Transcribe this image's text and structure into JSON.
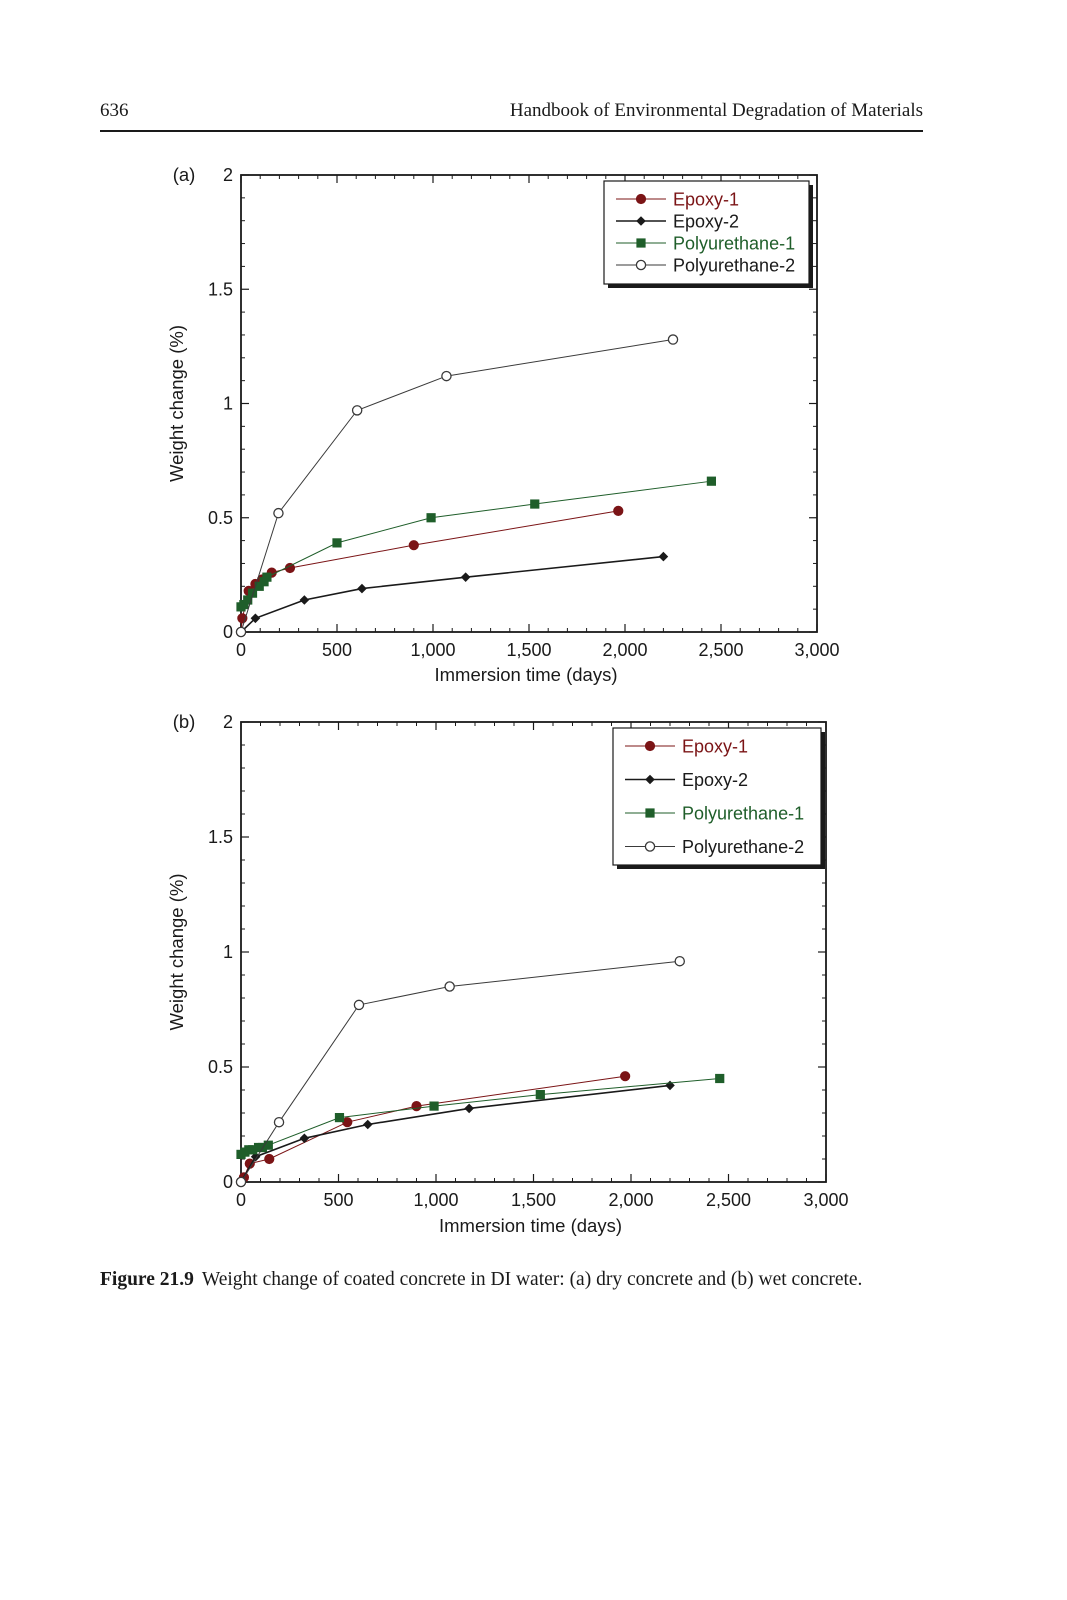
{
  "page": {
    "number": "636",
    "running_head": "Handbook of Environmental Degradation of Materials"
  },
  "caption": {
    "label": "Figure 21.9",
    "text": "Weight change of coated concrete in DI water: (a) dry concrete and (b) wet concrete."
  },
  "chart_data": [
    {
      "type": "line",
      "panel_label": "(a)",
      "xlabel": "Immersion time (days)",
      "ylabel": "Weight change (%)",
      "xlim": [
        0,
        3000
      ],
      "ylim": [
        0,
        2
      ],
      "xticks": [
        0,
        500,
        1000,
        1500,
        2000,
        2500,
        3000
      ],
      "xtick_labels": [
        "0",
        "500",
        "1,000",
        "1,500",
        "2,000",
        "2,500",
        "3,000"
      ],
      "yticks": [
        0,
        0.5,
        1,
        1.5,
        2
      ],
      "ytick_labels": [
        "0",
        "0.5",
        "1",
        "1.5",
        "2"
      ],
      "grid": false,
      "legend_position": "top-right",
      "series": [
        {
          "name": "Epoxy-1",
          "color": "#7b1416",
          "marker": "filled-circle",
          "x": [
            0,
            7,
            40,
            75,
            110,
            160,
            255,
            900,
            1965
          ],
          "y": [
            0,
            0.06,
            0.18,
            0.21,
            0.23,
            0.26,
            0.28,
            0.38,
            0.53
          ]
        },
        {
          "name": "Epoxy-2",
          "color": "#1a1a1a",
          "marker": "filled-diamond",
          "x": [
            0,
            75,
            330,
            630,
            1170,
            2200
          ],
          "y": [
            0,
            0.06,
            0.14,
            0.19,
            0.24,
            0.33
          ]
        },
        {
          "name": "Polyurethane-1",
          "color": "#1f5e2a",
          "marker": "filled-square",
          "x": [
            0,
            15,
            35,
            60,
            95,
            120,
            135,
            500,
            990,
            1530,
            2450
          ],
          "y": [
            0.11,
            0.12,
            0.14,
            0.17,
            0.2,
            0.22,
            0.24,
            0.39,
            0.5,
            0.56,
            0.66
          ]
        },
        {
          "name": "Polyurethane-2",
          "color": "#3a3a3a",
          "marker": "open-circle",
          "x": [
            0,
            195,
            605,
            1070,
            2250
          ],
          "y": [
            0,
            0.52,
            0.97,
            1.12,
            1.28
          ]
        }
      ]
    },
    {
      "type": "line",
      "panel_label": "(b)",
      "xlabel": "Immersion time (days)",
      "ylabel": "Weight change (%)",
      "xlim": [
        0,
        3000
      ],
      "ylim": [
        0,
        2
      ],
      "xticks": [
        0,
        500,
        1000,
        1500,
        2000,
        2500,
        3000
      ],
      "xtick_labels": [
        "0",
        "500",
        "1,000",
        "1,500",
        "2,000",
        "2,500",
        "3,000"
      ],
      "yticks": [
        0,
        0.5,
        1,
        1.5,
        2
      ],
      "ytick_labels": [
        "0",
        "0.5",
        "1",
        "1.5",
        "2"
      ],
      "grid": false,
      "legend_position": "top-right",
      "series": [
        {
          "name": "Epoxy-1",
          "color": "#7b1416",
          "marker": "filled-circle",
          "x": [
            0,
            15,
            45,
            145,
            545,
            900,
            1970
          ],
          "y": [
            0,
            0.02,
            0.08,
            0.1,
            0.26,
            0.33,
            0.46
          ]
        },
        {
          "name": "Epoxy-2",
          "color": "#1a1a1a",
          "marker": "filled-diamond",
          "x": [
            0,
            75,
            325,
            650,
            1170,
            2200
          ],
          "y": [
            0,
            0.11,
            0.19,
            0.25,
            0.32,
            0.42
          ]
        },
        {
          "name": "Polyurethane-1",
          "color": "#1f5e2a",
          "marker": "filled-square",
          "x": [
            0,
            20,
            40,
            60,
            90,
            110,
            140,
            505,
            990,
            1535,
            2455
          ],
          "y": [
            0.12,
            0.13,
            0.14,
            0.14,
            0.15,
            0.15,
            0.16,
            0.28,
            0.33,
            0.38,
            0.45
          ]
        },
        {
          "name": "Polyurethane-2",
          "color": "#3a3a3a",
          "marker": "open-circle",
          "x": [
            0,
            195,
            605,
            1070,
            2250
          ],
          "y": [
            0,
            0.26,
            0.77,
            0.85,
            0.96
          ]
        }
      ]
    }
  ]
}
